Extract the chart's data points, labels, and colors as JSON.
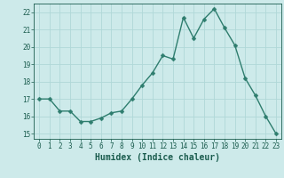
{
  "x": [
    0,
    1,
    2,
    3,
    4,
    5,
    6,
    7,
    8,
    9,
    10,
    11,
    12,
    13,
    14,
    15,
    16,
    17,
    18,
    19,
    20,
    21,
    22,
    23
  ],
  "y": [
    17,
    17,
    16.3,
    16.3,
    15.7,
    15.7,
    15.9,
    16.2,
    16.3,
    17.0,
    17.8,
    18.5,
    19.5,
    19.3,
    21.7,
    20.5,
    21.6,
    22.2,
    21.1,
    20.1,
    18.2,
    17.2,
    16.0,
    15.0
  ],
  "line_color": "#2e7d6e",
  "marker_color": "#2e7d6e",
  "bg_color": "#cdeaea",
  "grid_color": "#b0d8d8",
  "xlabel": "Humidex (Indice chaleur)",
  "ylim": [
    14.7,
    22.5
  ],
  "xlim": [
    -0.5,
    23.5
  ],
  "yticks": [
    15,
    16,
    17,
    18,
    19,
    20,
    21,
    22
  ],
  "xticks": [
    0,
    1,
    2,
    3,
    4,
    5,
    6,
    7,
    8,
    9,
    10,
    11,
    12,
    13,
    14,
    15,
    16,
    17,
    18,
    19,
    20,
    21,
    22,
    23
  ],
  "font_color": "#1a5c4e",
  "tick_fontsize": 5.5,
  "xlabel_fontsize": 7.0,
  "linewidth": 1.0,
  "markersize": 2.5
}
